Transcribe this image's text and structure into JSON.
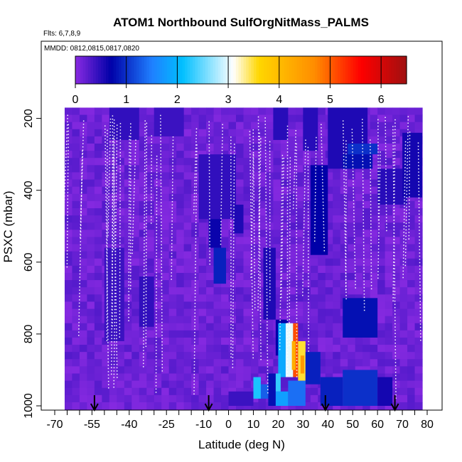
{
  "chart_data": {
    "type": "heatmap",
    "title": "ATOM1 Northbound SulfOrgNitMass_PALMS",
    "flights_note": "Flts: 6,7,8,9",
    "dates_note": "MMDD: 0812,0815,0817,0820",
    "xlabel": "Latitude (deg N)",
    "ylabel": "PSXC (mbar)",
    "xlim": [
      -70,
      80
    ],
    "ylim": [
      1000,
      0
    ],
    "x_ticks": [
      -70,
      -55,
      -40,
      -25,
      -10,
      0,
      10,
      20,
      30,
      40,
      50,
      60,
      70,
      80
    ],
    "x_tick_labels": [
      "-70",
      "-55",
      "-40",
      "-25",
      "-10",
      "0",
      "10",
      "20",
      "30",
      "40",
      "50",
      "60",
      "70",
      "80"
    ],
    "x_minor_step": 5,
    "y_ticks": [
      200,
      400,
      600,
      800,
      1000
    ],
    "y_tick_labels": [
      "200",
      "400",
      "600",
      "800",
      "1000"
    ],
    "colorbar": {
      "range": [
        0,
        6.5
      ],
      "ticks": [
        0,
        1,
        2,
        3,
        4,
        5,
        6
      ],
      "tick_labels": [
        "0",
        "1",
        "2",
        "3",
        "4",
        "5",
        "6"
      ],
      "colors": [
        "#8a2be2",
        "#0000a8",
        "#1f7fff",
        "#00bfff",
        "#ffffff",
        "#ffd700",
        "#ff8c00",
        "#ff0000",
        "#a01010"
      ],
      "stops": [
        0,
        0.7,
        1.5,
        2.1,
        3.1,
        3.6,
        4.7,
        5.6,
        6.5
      ]
    },
    "background_value": 0.15,
    "grid": {
      "lat_range": [
        -66,
        78
      ],
      "lat_step": 3,
      "p_range": [
        170,
        1000
      ],
      "p_step": 20
    },
    "cells": [
      {
        "lat": [
          -48,
          -36
        ],
        "p": [
          170,
          260
        ],
        "value": 0.45
      },
      {
        "lat": [
          -30,
          -18
        ],
        "p": [
          170,
          250
        ],
        "value": 0.4
      },
      {
        "lat": [
          -12,
          3
        ],
        "p": [
          300,
          480
        ],
        "value": 0.45
      },
      {
        "lat": [
          -8,
          -3
        ],
        "p": [
          480,
          560
        ],
        "value": 0.65
      },
      {
        "lat": [
          -6,
          -1
        ],
        "p": [
          560,
          660
        ],
        "value": 0.9
      },
      {
        "lat": [
          2,
          6
        ],
        "p": [
          440,
          520
        ],
        "value": 0.55
      },
      {
        "lat": [
          18,
          24
        ],
        "p": [
          170,
          260
        ],
        "value": 0.5
      },
      {
        "lat": [
          30,
          36
        ],
        "p": [
          170,
          290
        ],
        "value": 0.5
      },
      {
        "lat": [
          33,
          40
        ],
        "p": [
          330,
          580
        ],
        "value": 0.7
      },
      {
        "lat": [
          40,
          56
        ],
        "p": [
          170,
          340
        ],
        "value": 0.55
      },
      {
        "lat": [
          48,
          60
        ],
        "p": [
          270,
          300
        ],
        "value": 1.0
      },
      {
        "lat": [
          46,
          58
        ],
        "p": [
          300,
          340
        ],
        "value": 0.8
      },
      {
        "lat": [
          46,
          60
        ],
        "p": [
          700,
          810
        ],
        "value": 0.8
      },
      {
        "lat": [
          60,
          72
        ],
        "p": [
          340,
          440
        ],
        "value": 0.5
      },
      {
        "lat": [
          70,
          78
        ],
        "p": [
          240,
          420
        ],
        "value": 0.6
      },
      {
        "lat": [
          -50,
          -42
        ],
        "p": [
          560,
          820
        ],
        "value": 0.4
      },
      {
        "lat": [
          -36,
          -30
        ],
        "p": [
          640,
          780
        ],
        "value": 0.45
      },
      {
        "lat": [
          14,
          19
        ],
        "p": [
          560,
          760
        ],
        "value": 0.55
      },
      {
        "lat": [
          19,
          24
        ],
        "p": [
          760,
          860
        ],
        "value": 0.7
      },
      {
        "lat": [
          20,
          23
        ],
        "p": [
          770,
          920
        ],
        "value": 1.9
      },
      {
        "lat": [
          23,
          26
        ],
        "p": [
          770,
          920
        ],
        "value": 3.0
      },
      {
        "lat": [
          26,
          28
        ],
        "p": [
          770,
          920
        ],
        "value": 5.1
      },
      {
        "lat": [
          25.5,
          27
        ],
        "p": [
          820,
          900
        ],
        "value": 4.2
      },
      {
        "lat": [
          28,
          31
        ],
        "p": [
          820,
          930
        ],
        "value": 3.5
      },
      {
        "lat": [
          29,
          30.5
        ],
        "p": [
          860,
          910
        ],
        "value": 4.5
      },
      {
        "lat": [
          31,
          37
        ],
        "p": [
          850,
          940
        ],
        "value": 0.9
      },
      {
        "lat": [
          37,
          46
        ],
        "p": [
          920,
          1000
        ],
        "value": 0.9
      },
      {
        "lat": [
          46,
          60
        ],
        "p": [
          900,
          1000
        ],
        "value": 1.0
      },
      {
        "lat": [
          60,
          66
        ],
        "p": [
          920,
          1000
        ],
        "value": 0.6
      },
      {
        "lat": [
          16,
          19
        ],
        "p": [
          910,
          1000
        ],
        "value": 0.8
      },
      {
        "lat": [
          19,
          21
        ],
        "p": [
          910,
          960
        ],
        "value": 2.3
      },
      {
        "lat": [
          19,
          24
        ],
        "p": [
          960,
          1000
        ],
        "value": 1.8
      },
      {
        "lat": [
          24,
          31
        ],
        "p": [
          930,
          1000
        ],
        "value": 1.4
      },
      {
        "lat": [
          10,
          13
        ],
        "p": [
          920,
          980
        ],
        "value": 2.2
      },
      {
        "lat": [
          13,
          16
        ],
        "p": [
          940,
          980
        ],
        "value": 1.3
      },
      {
        "lat": [
          0,
          10
        ],
        "p": [
          960,
          1000
        ],
        "value": 0.4
      }
    ],
    "flight_track_markers_lat": [
      -54,
      -8,
      39,
      67
    ]
  }
}
